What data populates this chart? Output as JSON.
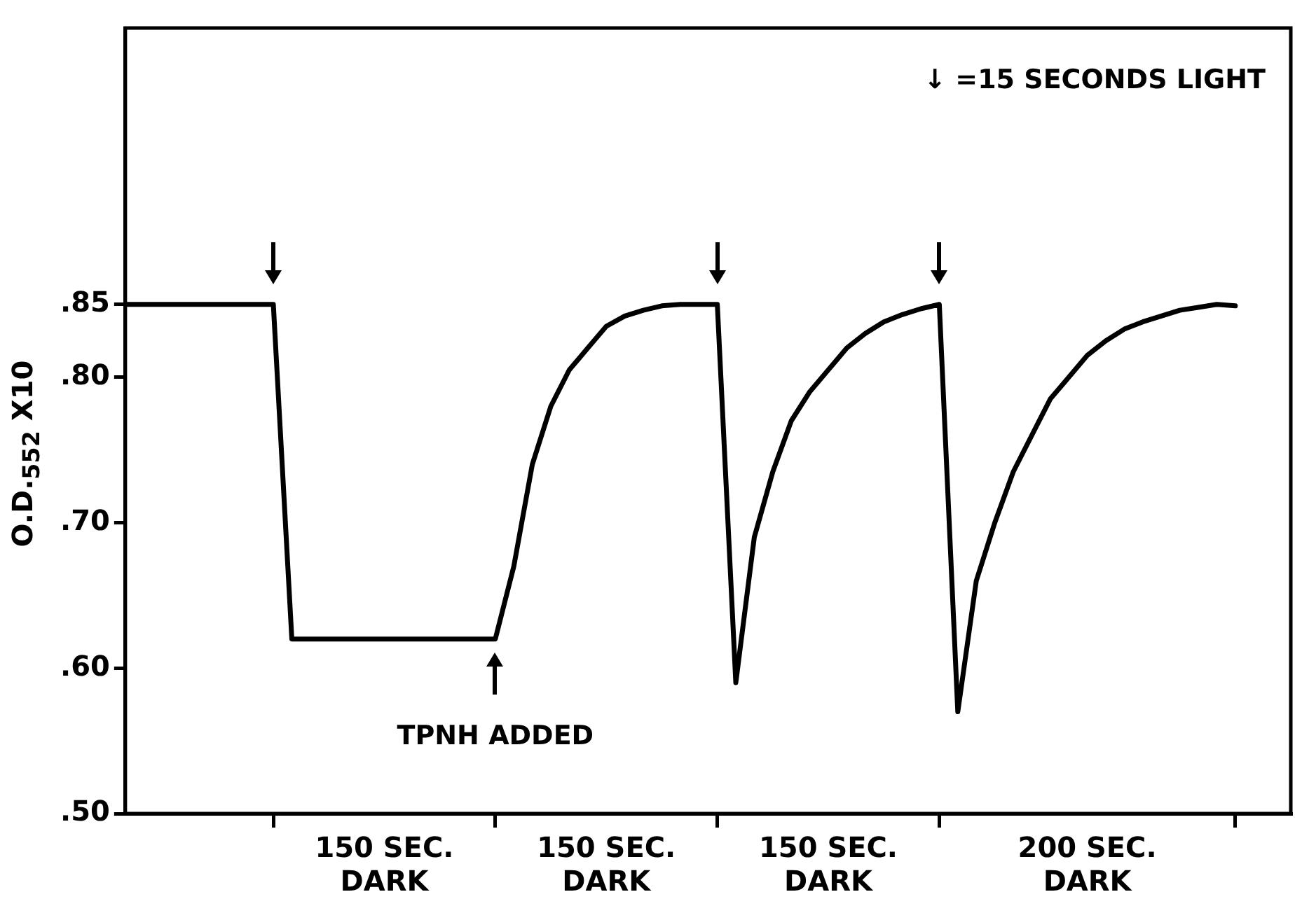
{
  "chart_data": {
    "type": "line",
    "ylabel": "O.D.$_{552}$ X10",
    "categories": [
      null,
      null,
      null,
      null,
      null,
      null,
      null,
      null,
      null,
      null,
      null,
      null,
      null,
      null,
      "150 SEC.\nDARK",
      null,
      null,
      null,
      null,
      null,
      null,
      null,
      null,
      null,
      null,
      null,
      "150 SEC.\nDARK",
      null,
      null,
      null,
      null,
      null,
      null,
      null,
      null,
      null,
      null,
      null,
      "150 SEC.\nDARK",
      null,
      null,
      null,
      null,
      null,
      null,
      null,
      null,
      null,
      null,
      null,
      null,
      null,
      "200 SEC.\nDARK",
      null,
      null,
      null,
      null,
      null,
      null,
      null,
      null,
      null,
      null,
      null
    ],
    "series": [
      {
        "color": "#000000",
        "values": [
          0.85,
          0.85,
          0.85,
          0.85,
          0.85,
          0.85,
          0.85,
          0.85,
          0.85,
          0.62,
          0.62,
          0.62,
          0.62,
          0.62,
          0.62,
          0.62,
          0.62,
          0.62,
          0.62,
          0.62,
          0.62,
          0.67,
          0.74,
          0.78,
          0.805,
          0.82,
          0.835,
          0.842,
          0.846,
          0.849,
          0.85,
          0.85,
          0.85,
          0.59,
          0.69,
          0.735,
          0.77,
          0.79,
          0.805,
          0.82,
          0.83,
          0.838,
          0.843,
          0.847,
          0.85,
          0.57,
          0.66,
          0.7,
          0.735,
          0.76,
          0.785,
          0.8,
          0.815,
          0.825,
          0.833,
          0.838,
          0.842,
          0.846,
          0.848,
          0.85,
          0.849,
          null,
          null,
          null
        ]
      }
    ],
    "ylim": [
      0.5,
      1.04
    ],
    "yticks": [
      {
        "value": 0.5,
        "label": ".50"
      },
      {
        "value": 0.6,
        "label": ".60"
      },
      {
        "value": 0.7,
        "label": ".70"
      },
      {
        "value": 0.8,
        "label": ".80"
      },
      {
        "value": 0.85,
        "label": ".85"
      }
    ],
    "grid": false,
    "legend": false,
    "marker": "none",
    "line_style": "solid",
    "annotations": [
      "↓ =15 SECONDS LIGHT",
      "TPNH ADDED"
    ]
  }
}
